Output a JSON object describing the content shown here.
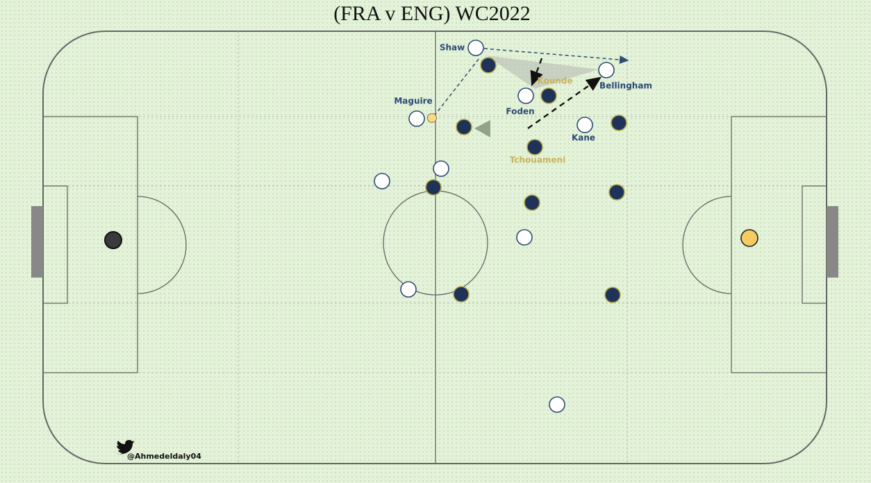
{
  "title": "(FRA v ENG) WC2022",
  "players": {
    "shaw": "Shaw",
    "bellingham": "Bellingham",
    "foden": "Foden",
    "maguire": "Maguire",
    "kane": "Kane",
    "kounde": "Kounde",
    "tchouameni": "Tchouameni"
  },
  "credit": "@Ahmedeldaly04"
}
